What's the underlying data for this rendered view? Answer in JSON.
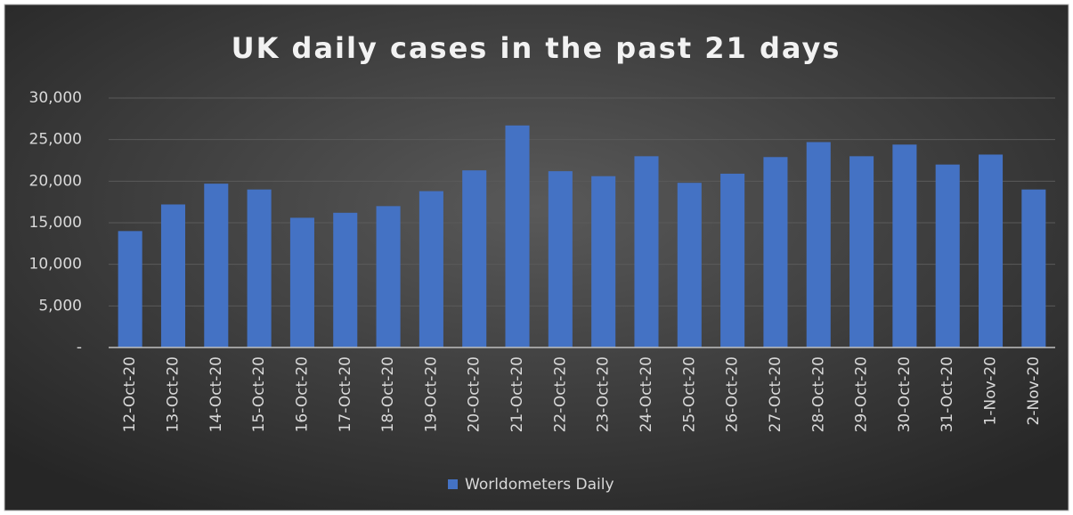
{
  "chart_data": {
    "type": "bar",
    "title": "UK daily cases in the past 21 days",
    "categories": [
      "12-Oct-20",
      "13-Oct-20",
      "14-Oct-20",
      "15-Oct-20",
      "16-Oct-20",
      "17-Oct-20",
      "18-Oct-20",
      "19-Oct-20",
      "20-Oct-20",
      "21-Oct-20",
      "22-Oct-20",
      "23-Oct-20",
      "24-Oct-20",
      "25-Oct-20",
      "26-Oct-20",
      "27-Oct-20",
      "28-Oct-20",
      "29-Oct-20",
      "30-Oct-20",
      "31-Oct-20",
      "1-Nov-20",
      "2-Nov-20"
    ],
    "series": [
      {
        "name": "Worldometers Daily",
        "color": "#4472c4",
        "values": [
          14000,
          17200,
          19700,
          19000,
          15600,
          16200,
          17000,
          18800,
          21300,
          26700,
          21200,
          20600,
          23000,
          19800,
          20900,
          22900,
          24700,
          23000,
          24400,
          22000,
          23200,
          19000
        ]
      }
    ],
    "ylim": [
      0,
      30000
    ],
    "yticks": [
      {
        "value": 0,
        "label": "-"
      },
      {
        "value": 5000,
        "label": "5,000"
      },
      {
        "value": 10000,
        "label": "10,000"
      },
      {
        "value": 15000,
        "label": "15,000"
      },
      {
        "value": 20000,
        "label": "20,000"
      },
      {
        "value": 25000,
        "label": "25,000"
      },
      {
        "value": 30000,
        "label": "30,000"
      }
    ],
    "grid": true,
    "legend": "bottom"
  }
}
